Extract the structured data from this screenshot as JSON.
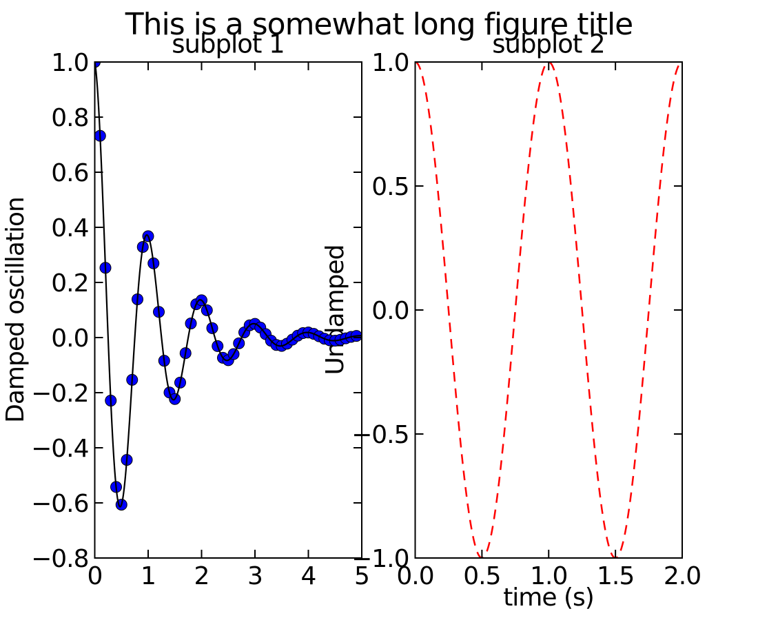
{
  "figure": {
    "suptitle": "This is a somewhat long figure title",
    "background_color": "#ffffff",
    "text_color": "#000000"
  },
  "chart_data": [
    {
      "type": "line",
      "subtype": "line-with-markers",
      "title": "subplot 1",
      "xlabel": "",
      "ylabel": "Damped oscillation",
      "xlim": [
        0,
        5
      ],
      "ylim": [
        -0.8,
        1.0
      ],
      "grid": false,
      "legend": "none",
      "xticks": {
        "values": [
          0,
          1,
          2,
          3,
          4,
          5
        ],
        "labels": [
          "0",
          "1",
          "2",
          "3",
          "4",
          "5"
        ]
      },
      "yticks": {
        "values": [
          1.0,
          0.8,
          0.6,
          0.4,
          0.2,
          0.0,
          -0.2,
          -0.4,
          -0.6,
          -0.8
        ],
        "labels": [
          "1.0",
          "0.8",
          "0.6",
          "0.4",
          "0.2",
          "0.0",
          "−0.2",
          "−0.4",
          "−0.6",
          "−0.8"
        ]
      },
      "series": [
        {
          "name": "damped-oscillation-markers",
          "type": "scatter",
          "marker": "circle",
          "marker_radius": 8,
          "color": "#0000ff",
          "edge_color": "#000000",
          "edge_width": 1,
          "formula": "y = cos(2*pi*t) * exp(-t), t = 0 to 4.9 step 0.1",
          "x": [
            0.0,
            0.1,
            0.2,
            0.3,
            0.4,
            0.5,
            0.6,
            0.7,
            0.8,
            0.9,
            1.0,
            1.1,
            1.2,
            1.3,
            1.4,
            1.5,
            1.6,
            1.7,
            1.8,
            1.9,
            2.0,
            2.1,
            2.2,
            2.3,
            2.4,
            2.5,
            2.6,
            2.7,
            2.8,
            2.9,
            3.0,
            3.1,
            3.2,
            3.3,
            3.4,
            3.5,
            3.6,
            3.7,
            3.8,
            3.9,
            4.0,
            4.1,
            4.2,
            4.3,
            4.4,
            4.5,
            4.6,
            4.7,
            4.8,
            4.9
          ],
          "y": [
            1.0,
            0.7321,
            0.253,
            -0.2289,
            -0.5423,
            -0.6065,
            -0.444,
            -0.1535,
            0.1389,
            0.3289,
            0.3679,
            0.2693,
            0.0931,
            -0.0842,
            -0.1995,
            -0.2231,
            -0.1633,
            -0.0565,
            0.0511,
            0.121,
            0.1353,
            0.0991,
            0.0342,
            -0.031,
            -0.0734,
            -0.0821,
            -0.0601,
            -0.0208,
            0.0188,
            0.0445,
            0.0498,
            0.0364,
            0.0126,
            -0.0114,
            -0.027,
            -0.0302,
            -0.0221,
            -0.0076,
            0.0069,
            0.0164,
            0.0183,
            0.0134,
            0.0046,
            -0.0042,
            -0.0099,
            -0.0111,
            -0.0081,
            -0.0028,
            0.0025,
            0.006
          ]
        },
        {
          "name": "damped-oscillation-line",
          "type": "line",
          "color": "#000000",
          "width": 2.2,
          "dash": null,
          "formula": "y = cos(2*pi*t) * exp(-t)",
          "formula_id": "damped",
          "t_range": [
            0,
            5
          ]
        }
      ]
    },
    {
      "type": "line",
      "subtype": "dashed-line",
      "title": "subplot 2",
      "xlabel": "time (s)",
      "ylabel": "Undamped",
      "xlim": [
        0,
        2
      ],
      "ylim": [
        -1.0,
        1.0
      ],
      "grid": false,
      "legend": "none",
      "xticks": {
        "values": [
          0.0,
          0.5,
          1.0,
          1.5,
          2.0
        ],
        "labels": [
          "0.0",
          "0.5",
          "1.0",
          "1.5",
          "2.0"
        ]
      },
      "yticks": {
        "values": [
          1.0,
          0.5,
          0.0,
          -0.5,
          -1.0
        ],
        "labels": [
          "1.0",
          "0.5",
          "0.0",
          "−0.5",
          "−1.0"
        ]
      },
      "series": [
        {
          "name": "undamped-cosine-line",
          "type": "line",
          "color": "#ff0000",
          "width": 2.5,
          "dash": [
            14,
            10
          ],
          "formula": "y = cos(2*pi*t)",
          "formula_id": "cos2pi",
          "t_range": [
            0,
            2
          ]
        }
      ]
    }
  ]
}
